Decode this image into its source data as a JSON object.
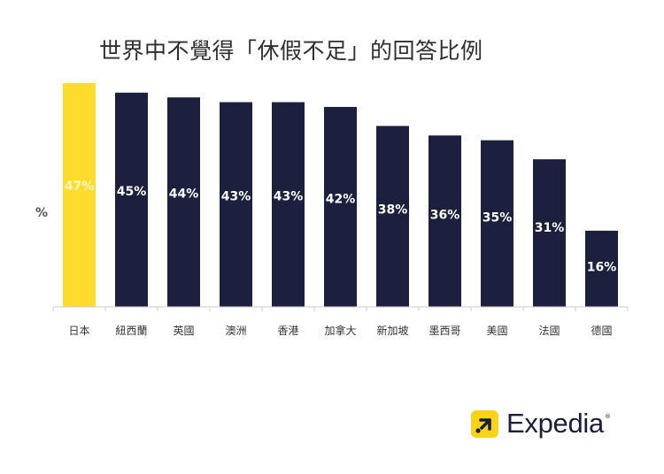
{
  "chart_data": {
    "type": "bar",
    "title": "世界中不覺得「休假不足」的回答比例",
    "ylabel": "%",
    "categories": [
      "日本",
      "紐西蘭",
      "英國",
      "澳洲",
      "香港",
      "加拿大",
      "新加坡",
      "墨西哥",
      "美國",
      "法國",
      "德國"
    ],
    "values": [
      47,
      45,
      44,
      43,
      43,
      42,
      38,
      36,
      35,
      31,
      16
    ],
    "value_labels": [
      "47%",
      "45%",
      "44%",
      "43%",
      "43%",
      "42%",
      "38%",
      "36%",
      "35%",
      "31%",
      "16%"
    ],
    "highlight_index": 0,
    "ylim": [
      0,
      47
    ],
    "grid": false,
    "colors": {
      "highlight": "#fddc2e",
      "bar": "#1c1f3d",
      "label_on_highlight": "#fff7c7",
      "label_on_bar": "#ffffff",
      "axis": "#cccccc"
    }
  },
  "brand": {
    "name": "Expedia",
    "trademark": "®",
    "mark_color": "#f8d318",
    "icon": "expedia-arrow-icon"
  }
}
